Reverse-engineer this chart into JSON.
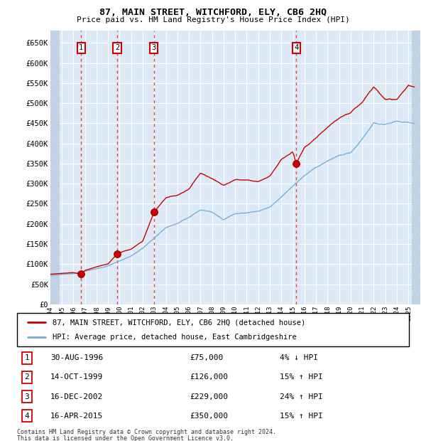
{
  "title": "87, MAIN STREET, WITCHFORD, ELY, CB6 2HQ",
  "subtitle": "Price paid vs. HM Land Registry's House Price Index (HPI)",
  "legend_line1": "87, MAIN STREET, WITCHFORD, ELY, CB6 2HQ (detached house)",
  "legend_line2": "HPI: Average price, detached house, East Cambridgeshire",
  "footer1": "Contains HM Land Registry data © Crown copyright and database right 2024.",
  "footer2": "This data is licensed under the Open Government Licence v3.0.",
  "transactions": [
    {
      "num": 1,
      "date": "30-AUG-1996",
      "price": 75000,
      "pct": "4%",
      "dir": "↓",
      "year": 1996.67
    },
    {
      "num": 2,
      "date": "14-OCT-1999",
      "price": 126000,
      "pct": "15%",
      "dir": "↑",
      "year": 1999.79
    },
    {
      "num": 3,
      "date": "16-DEC-2002",
      "price": 229000,
      "pct": "24%",
      "dir": "↑",
      "year": 2002.96
    },
    {
      "num": 4,
      "date": "16-APR-2015",
      "price": 350000,
      "pct": "15%",
      "dir": "↑",
      "year": 2015.29
    }
  ],
  "hpi_color": "#7aafd4",
  "price_color": "#cc0000",
  "dot_color": "#cc0000",
  "bg_color": "#ddeaf6",
  "grid_color": "#c8daea",
  "ylim": [
    0,
    680000
  ],
  "yticks": [
    0,
    50000,
    100000,
    150000,
    200000,
    250000,
    300000,
    350000,
    400000,
    450000,
    500000,
    550000,
    600000,
    650000
  ],
  "year_start": 1994,
  "year_end": 2026,
  "xtick_years": [
    1994,
    1995,
    1996,
    1997,
    1998,
    1999,
    2000,
    2001,
    2002,
    2003,
    2004,
    2005,
    2006,
    2007,
    2008,
    2009,
    2010,
    2011,
    2012,
    2013,
    2014,
    2015,
    2016,
    2017,
    2018,
    2019,
    2020,
    2021,
    2022,
    2023,
    2024,
    2025
  ],
  "hpi_anchors": [
    [
      1994.0,
      72000
    ],
    [
      1995.0,
      74000
    ],
    [
      1996.0,
      76000
    ],
    [
      1997.0,
      82000
    ],
    [
      1998.0,
      88000
    ],
    [
      1999.0,
      95000
    ],
    [
      2000.0,
      108000
    ],
    [
      2001.0,
      120000
    ],
    [
      2002.0,
      140000
    ],
    [
      2003.0,
      165000
    ],
    [
      2004.0,
      190000
    ],
    [
      2005.0,
      200000
    ],
    [
      2006.0,
      215000
    ],
    [
      2007.0,
      235000
    ],
    [
      2008.0,
      230000
    ],
    [
      2009.0,
      210000
    ],
    [
      2010.0,
      225000
    ],
    [
      2011.0,
      228000
    ],
    [
      2012.0,
      232000
    ],
    [
      2013.0,
      242000
    ],
    [
      2014.0,
      268000
    ],
    [
      2015.0,
      295000
    ],
    [
      2016.0,
      320000
    ],
    [
      2017.0,
      340000
    ],
    [
      2018.0,
      355000
    ],
    [
      2019.0,
      368000
    ],
    [
      2020.0,
      375000
    ],
    [
      2021.0,
      410000
    ],
    [
      2022.0,
      450000
    ],
    [
      2023.0,
      445000
    ],
    [
      2024.0,
      455000
    ],
    [
      2025.5,
      450000
    ]
  ],
  "red_anchors": [
    [
      1994.0,
      75000
    ],
    [
      1995.0,
      77000
    ],
    [
      1996.0,
      79000
    ],
    [
      1996.67,
      75000
    ],
    [
      1997.0,
      84000
    ],
    [
      1998.0,
      93000
    ],
    [
      1999.0,
      100000
    ],
    [
      1999.79,
      126000
    ],
    [
      2000.0,
      128000
    ],
    [
      2001.0,
      138000
    ],
    [
      2002.0,
      158000
    ],
    [
      2002.96,
      229000
    ],
    [
      2003.0,
      230000
    ],
    [
      2004.0,
      265000
    ],
    [
      2005.0,
      270000
    ],
    [
      2006.0,
      285000
    ],
    [
      2007.0,
      325000
    ],
    [
      2008.0,
      310000
    ],
    [
      2009.0,
      295000
    ],
    [
      2010.0,
      310000
    ],
    [
      2011.0,
      310000
    ],
    [
      2012.0,
      305000
    ],
    [
      2013.0,
      320000
    ],
    [
      2014.0,
      360000
    ],
    [
      2015.0,
      380000
    ],
    [
      2015.29,
      350000
    ],
    [
      2016.0,
      390000
    ],
    [
      2017.0,
      415000
    ],
    [
      2018.0,
      440000
    ],
    [
      2019.0,
      460000
    ],
    [
      2020.0,
      470000
    ],
    [
      2021.0,
      500000
    ],
    [
      2022.0,
      540000
    ],
    [
      2023.0,
      510000
    ],
    [
      2024.0,
      510000
    ],
    [
      2025.0,
      545000
    ],
    [
      2025.5,
      540000
    ]
  ]
}
